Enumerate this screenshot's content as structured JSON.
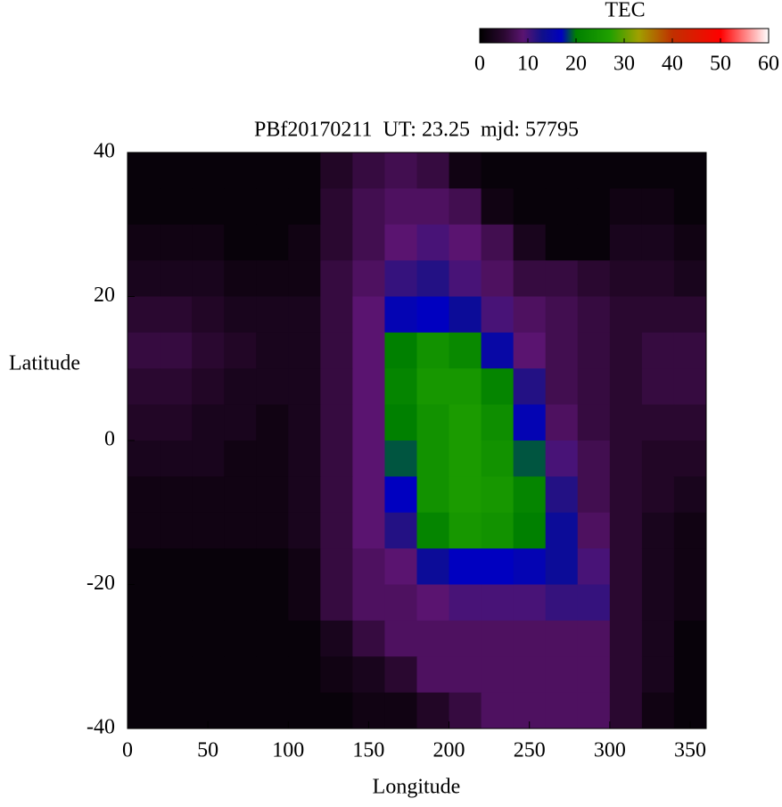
{
  "chart_data": {
    "type": "heatmap",
    "title": "PBf20170211  UT: 23.25  mjd: 57795",
    "xlabel": "Longitude",
    "ylabel": "Latitude",
    "colorbar_label": "TEC",
    "xbins": [
      0,
      20,
      40,
      60,
      80,
      100,
      120,
      140,
      160,
      180,
      200,
      220,
      240,
      260,
      280,
      300,
      320,
      340,
      360
    ],
    "ybins": [
      40,
      35,
      30,
      25,
      20,
      15,
      10,
      5,
      0,
      -5,
      -10,
      -15,
      -20,
      -25,
      -30,
      -35,
      -40
    ],
    "z": [
      [
        1,
        1,
        1,
        1,
        1,
        1,
        4,
        6,
        7,
        6,
        2,
        1,
        1,
        1,
        1,
        1,
        1,
        1
      ],
      [
        1,
        1,
        1,
        1,
        1,
        1,
        5,
        7,
        8,
        8,
        7,
        2,
        1,
        1,
        1,
        2,
        2,
        1
      ],
      [
        2,
        2,
        2,
        1,
        1,
        2,
        5,
        7,
        9,
        10,
        9,
        7,
        3,
        1,
        1,
        3,
        3,
        2
      ],
      [
        3,
        3,
        3,
        2,
        2,
        2,
        6,
        8,
        11,
        12,
        10,
        8,
        6,
        6,
        5,
        4,
        4,
        3
      ],
      [
        5,
        5,
        4,
        3,
        3,
        3,
        6,
        9,
        16,
        17,
        14,
        10,
        8,
        7,
        6,
        5,
        5,
        5
      ],
      [
        6,
        6,
        5,
        4,
        3,
        3,
        6,
        9,
        20,
        24,
        22,
        15,
        9,
        7,
        6,
        5,
        6,
        6
      ],
      [
        5,
        5,
        4,
        3,
        3,
        3,
        6,
        9,
        21,
        25,
        25,
        21,
        12,
        7,
        6,
        5,
        6,
        6
      ],
      [
        4,
        4,
        3,
        3,
        2,
        3,
        6,
        9,
        20,
        24,
        26,
        23,
        16,
        8,
        6,
        5,
        5,
        5
      ],
      [
        3,
        3,
        3,
        2,
        2,
        3,
        6,
        9,
        19,
        24,
        26,
        24,
        19,
        10,
        7,
        5,
        4,
        4
      ],
      [
        2,
        2,
        2,
        2,
        2,
        3,
        6,
        9,
        17,
        24,
        26,
        25,
        21,
        12,
        7,
        5,
        4,
        3
      ],
      [
        2,
        2,
        2,
        2,
        2,
        3,
        6,
        9,
        12,
        21,
        25,
        24,
        20,
        14,
        8,
        5,
        3,
        2
      ],
      [
        1,
        1,
        1,
        1,
        1,
        2,
        6,
        8,
        9,
        14,
        17,
        17,
        16,
        14,
        10,
        5,
        3,
        2
      ],
      [
        1,
        1,
        1,
        1,
        1,
        2,
        6,
        8,
        8,
        9,
        10,
        10,
        10,
        11,
        11,
        5,
        3,
        2
      ],
      [
        1,
        1,
        1,
        1,
        1,
        1,
        3,
        6,
        8,
        8,
        8,
        8,
        8,
        8,
        8,
        5,
        3,
        1
      ],
      [
        1,
        1,
        1,
        1,
        1,
        1,
        2,
        3,
        5,
        8,
        8,
        8,
        8,
        8,
        8,
        5,
        3,
        1
      ],
      [
        1,
        1,
        1,
        1,
        1,
        1,
        1,
        2,
        2,
        4,
        6,
        8,
        8,
        8,
        8,
        5,
        2,
        1
      ]
    ],
    "xlim": [
      0,
      360
    ],
    "xticks": [
      0,
      50,
      100,
      150,
      200,
      250,
      300,
      350
    ],
    "ylim": [
      -40,
      40
    ],
    "yticks": [
      -40,
      -20,
      0,
      20,
      40
    ],
    "clim": [
      0,
      60
    ],
    "cticks": [
      0,
      10,
      20,
      30,
      40,
      50,
      60
    ],
    "colorscale": [
      [
        0,
        "#000000"
      ],
      [
        5,
        "#2a0830"
      ],
      [
        9,
        "#5a1470"
      ],
      [
        13,
        "#10108a"
      ],
      [
        17,
        "#0000c0"
      ],
      [
        20,
        "#008000"
      ],
      [
        27,
        "#20a000"
      ],
      [
        33,
        "#a0a000"
      ],
      [
        40,
        "#c03000"
      ],
      [
        50,
        "#ff0000"
      ],
      [
        60,
        "#ffffff"
      ]
    ]
  }
}
